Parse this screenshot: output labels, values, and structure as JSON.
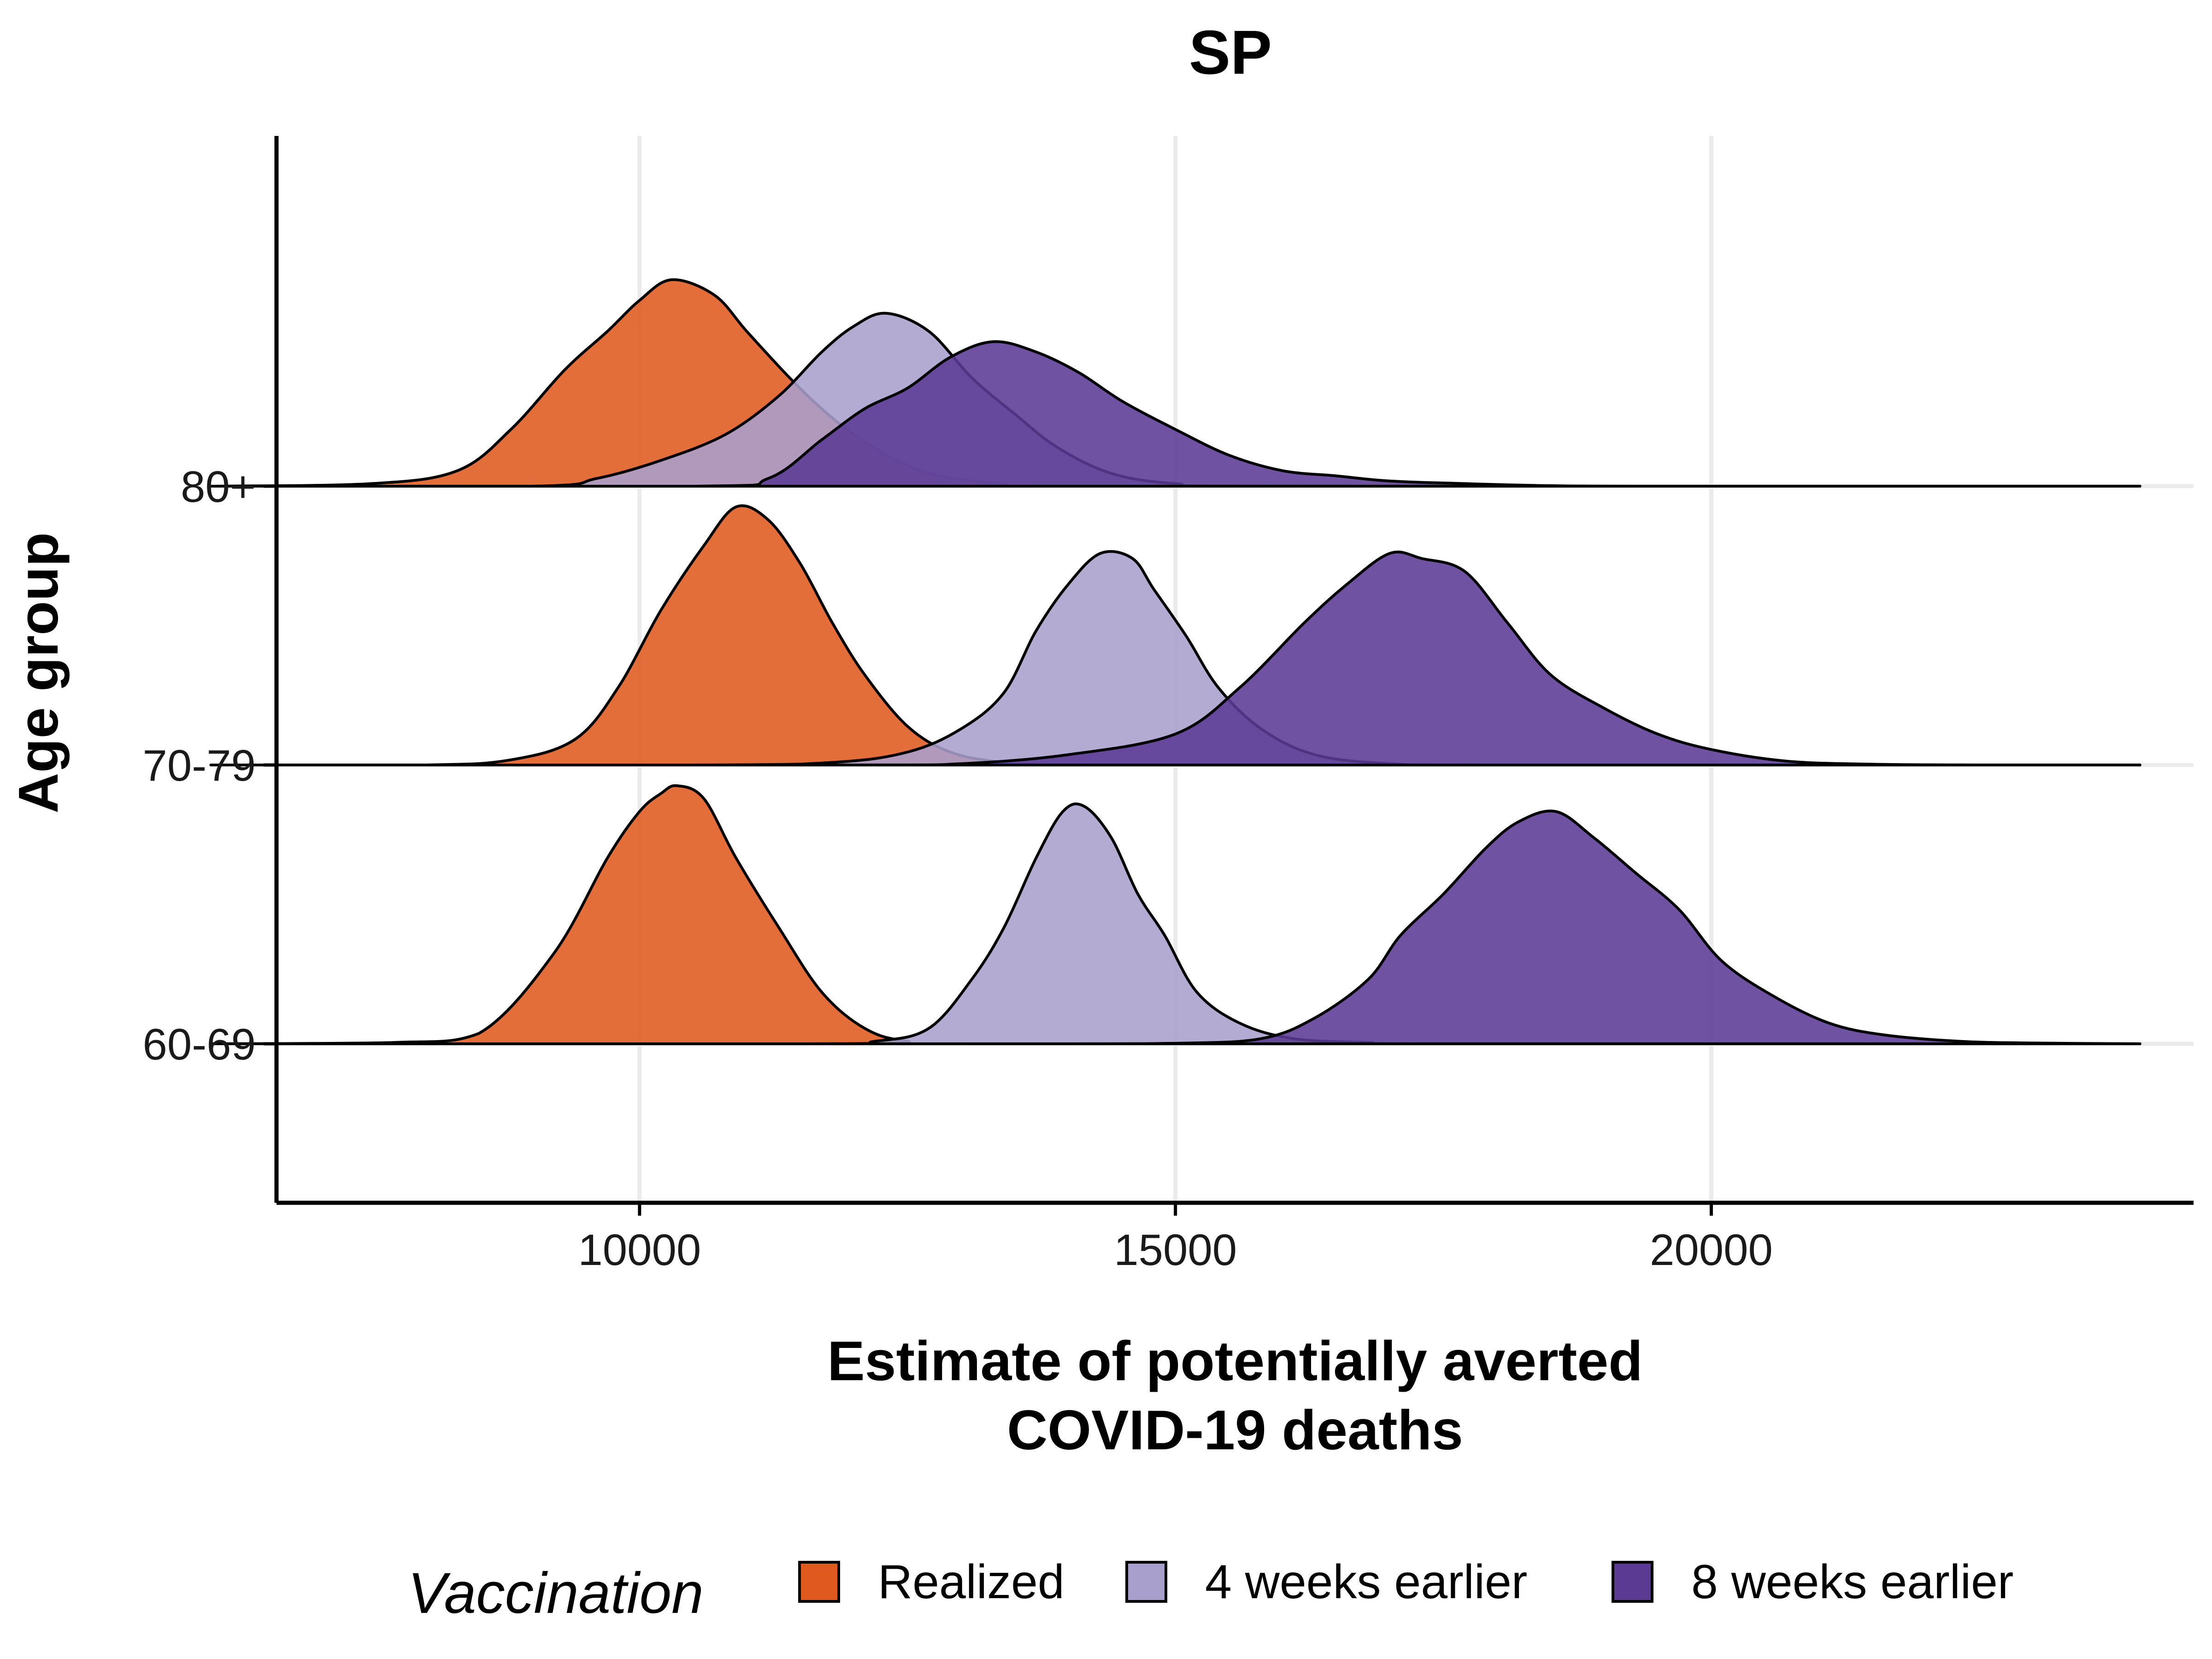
{
  "chart_data": {
    "type": "ridgeline",
    "title": "SP",
    "xlabel_lines": [
      "Estimate of potentially averted",
      "COVID-19 deaths"
    ],
    "ylabel": "Age group",
    "xlim": [
      5000,
      24500
    ],
    "x_ticks": [
      10000,
      15000,
      20000
    ],
    "x_tick_labels": [
      "10000",
      "15000",
      "20000"
    ],
    "grid": true,
    "legend": {
      "title": "Vaccination",
      "position": "bottom",
      "entries": [
        {
          "label": "Realized",
          "color": "#E05A1F"
        },
        {
          "label": "4 weeks earlier",
          "color": "#A99FCC"
        },
        {
          "label": "8 weeks earlier",
          "color": "#5B3A94"
        }
      ]
    },
    "groups": [
      {
        "label": "60-69",
        "series": [
          {
            "series": "Realized",
            "points": [
              [
                6000,
                0
              ],
              [
                7700,
                0.005
              ],
              [
                8500,
                0.04
              ],
              [
                9200,
                0.35
              ],
              [
                9700,
                0.72
              ],
              [
                10000,
                0.9
              ],
              [
                10200,
                0.97
              ],
              [
                10350,
                1
              ],
              [
                10600,
                0.95
              ],
              [
                10900,
                0.72
              ],
              [
                11300,
                0.45
              ],
              [
                11700,
                0.2
              ],
              [
                12100,
                0.06
              ],
              [
                12500,
                0.01
              ],
              [
                13200,
                0
              ],
              [
                24000,
                0
              ]
            ]
          },
          {
            "series": "4 weeks earlier",
            "points": [
              [
                6000,
                0
              ],
              [
                11500,
                0
              ],
              [
                12200,
                0.01
              ],
              [
                12700,
                0.06
              ],
              [
                13100,
                0.25
              ],
              [
                13400,
                0.45
              ],
              [
                13700,
                0.72
              ],
              [
                13950,
                0.9
              ],
              [
                14150,
                0.92
              ],
              [
                14400,
                0.8
              ],
              [
                14650,
                0.58
              ],
              [
                14900,
                0.42
              ],
              [
                15200,
                0.2
              ],
              [
                15600,
                0.08
              ],
              [
                16100,
                0.02
              ],
              [
                16800,
                0.005
              ],
              [
                17500,
                0
              ],
              [
                24000,
                0
              ]
            ]
          },
          {
            "series": "8 weeks earlier",
            "points": [
              [
                6000,
                0
              ],
              [
                13500,
                0
              ],
              [
                15000,
                0.002
              ],
              [
                15800,
                0.02
              ],
              [
                16300,
                0.1
              ],
              [
                16800,
                0.25
              ],
              [
                17100,
                0.42
              ],
              [
                17500,
                0.58
              ],
              [
                17900,
                0.76
              ],
              [
                18200,
                0.86
              ],
              [
                18550,
                0.9
              ],
              [
                18900,
                0.8
              ],
              [
                19300,
                0.66
              ],
              [
                19700,
                0.52
              ],
              [
                20100,
                0.32
              ],
              [
                20600,
                0.18
              ],
              [
                21100,
                0.08
              ],
              [
                21600,
                0.035
              ],
              [
                22300,
                0.01
              ],
              [
                23000,
                0.003
              ],
              [
                24000,
                0
              ]
            ]
          }
        ]
      },
      {
        "label": "70-79",
        "series": [
          {
            "series": "Realized",
            "points": [
              [
                6000,
                0
              ],
              [
                8000,
                0
              ],
              [
                8800,
                0.02
              ],
              [
                9400,
                0.1
              ],
              [
                9800,
                0.3
              ],
              [
                10200,
                0.6
              ],
              [
                10600,
                0.85
              ],
              [
                10900,
                1
              ],
              [
                11200,
                0.95
              ],
              [
                11500,
                0.78
              ],
              [
                11800,
                0.55
              ],
              [
                12100,
                0.35
              ],
              [
                12500,
                0.15
              ],
              [
                12900,
                0.05
              ],
              [
                13400,
                0.01
              ],
              [
                14000,
                0
              ],
              [
                24000,
                0
              ]
            ]
          },
          {
            "series": "4 weeks earlier",
            "points": [
              [
                6000,
                0
              ],
              [
                10500,
                0
              ],
              [
                11800,
                0.01
              ],
              [
                12500,
                0.05
              ],
              [
                13000,
                0.14
              ],
              [
                13400,
                0.28
              ],
              [
                13700,
                0.52
              ],
              [
                14000,
                0.7
              ],
              [
                14300,
                0.82
              ],
              [
                14600,
                0.8
              ],
              [
                14800,
                0.68
              ],
              [
                15100,
                0.5
              ],
              [
                15400,
                0.3
              ],
              [
                15800,
                0.14
              ],
              [
                16300,
                0.04
              ],
              [
                17000,
                0.005
              ],
              [
                18000,
                0
              ],
              [
                24000,
                0
              ]
            ]
          },
          {
            "series": "8 weeks earlier",
            "points": [
              [
                6000,
                0
              ],
              [
                12000,
                0
              ],
              [
                13000,
                0.005
              ],
              [
                14000,
                0.04
              ],
              [
                15000,
                0.12
              ],
              [
                15600,
                0.3
              ],
              [
                16200,
                0.55
              ],
              [
                16600,
                0.7
              ],
              [
                17000,
                0.82
              ],
              [
                17300,
                0.8
              ],
              [
                17700,
                0.75
              ],
              [
                18100,
                0.55
              ],
              [
                18500,
                0.35
              ],
              [
                19000,
                0.22
              ],
              [
                19500,
                0.12
              ],
              [
                20000,
                0.06
              ],
              [
                20700,
                0.015
              ],
              [
                21500,
                0.003
              ],
              [
                22500,
                0
              ],
              [
                24000,
                0
              ]
            ]
          }
        ]
      },
      {
        "label": "80+",
        "series": [
          {
            "series": "Realized",
            "points": [
              [
                6000,
                0
              ],
              [
                7500,
                0.01
              ],
              [
                8300,
                0.06
              ],
              [
                8800,
                0.22
              ],
              [
                9300,
                0.45
              ],
              [
                9700,
                0.6
              ],
              [
                10000,
                0.72
              ],
              [
                10300,
                0.8
              ],
              [
                10700,
                0.74
              ],
              [
                11000,
                0.6
              ],
              [
                11400,
                0.42
              ],
              [
                11700,
                0.3
              ],
              [
                12000,
                0.2
              ],
              [
                12400,
                0.1
              ],
              [
                12800,
                0.04
              ],
              [
                13400,
                0.01
              ],
              [
                14000,
                0
              ],
              [
                24000,
                0
              ]
            ]
          },
          {
            "series": "4 weeks earlier",
            "points": [
              [
                6000,
                0
              ],
              [
                9000,
                0
              ],
              [
                9600,
                0.03
              ],
              [
                10200,
                0.1
              ],
              [
                10800,
                0.2
              ],
              [
                11300,
                0.35
              ],
              [
                11700,
                0.52
              ],
              [
                12000,
                0.62
              ],
              [
                12300,
                0.67
              ],
              [
                12700,
                0.6
              ],
              [
                13100,
                0.42
              ],
              [
                13500,
                0.28
              ],
              [
                13900,
                0.15
              ],
              [
                14400,
                0.05
              ],
              [
                15000,
                0.01
              ],
              [
                16000,
                0
              ],
              [
                24000,
                0
              ]
            ]
          },
          {
            "series": "8 weeks earlier",
            "points": [
              [
                6000,
                0
              ],
              [
                10500,
                0
              ],
              [
                11200,
                0.03
              ],
              [
                11700,
                0.18
              ],
              [
                12100,
                0.3
              ],
              [
                12500,
                0.38
              ],
              [
                12900,
                0.5
              ],
              [
                13300,
                0.56
              ],
              [
                13700,
                0.52
              ],
              [
                14100,
                0.44
              ],
              [
                14500,
                0.33
              ],
              [
                15000,
                0.22
              ],
              [
                15500,
                0.12
              ],
              [
                16000,
                0.06
              ],
              [
                16500,
                0.04
              ],
              [
                17000,
                0.02
              ],
              [
                17700,
                0.01
              ],
              [
                18500,
                0.002
              ],
              [
                19500,
                0
              ],
              [
                24000,
                0
              ]
            ]
          }
        ]
      }
    ]
  }
}
